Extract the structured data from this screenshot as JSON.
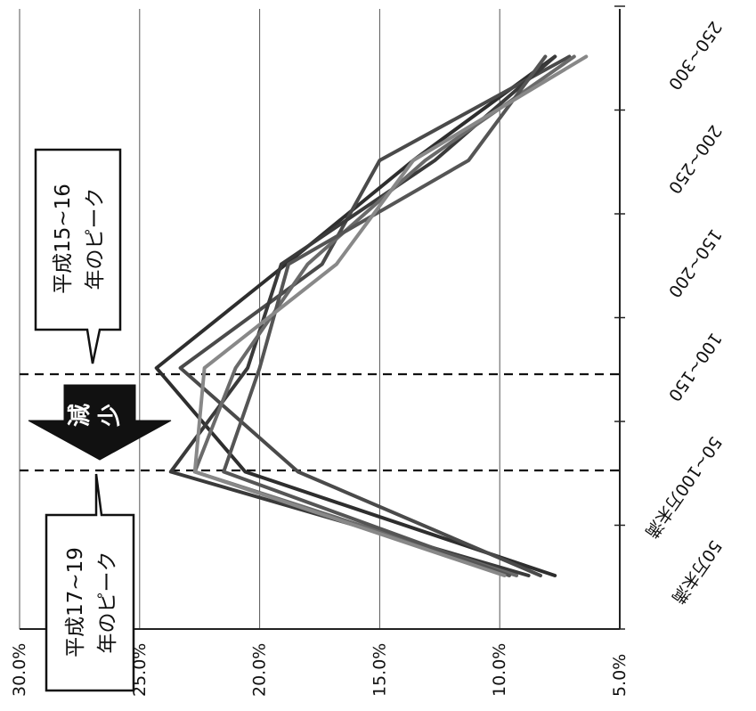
{
  "chart_data": {
    "type": "line",
    "orientation": "rotated-90-clockwise",
    "title": "",
    "xlabel": "",
    "ylabel": "",
    "categories": [
      "50万未満",
      "50~100万未満",
      "100~150",
      "150~200",
      "200~250",
      "250~300"
    ],
    "value_axis": {
      "ylim": [
        0.05,
        0.3
      ],
      "ticks": [
        "5.0%",
        "10.0%",
        "15.0%",
        "20.0%",
        "25.0%",
        "30.0%"
      ],
      "tick_values": [
        0.05,
        0.1,
        0.15,
        0.2,
        0.25,
        0.3
      ],
      "grid": true
    },
    "series": [
      {
        "values": [
          0.077,
          0.206,
          0.243,
          0.189,
          0.136,
          0.077
        ],
        "color": "#2e2e2e"
      },
      {
        "values": [
          0.083,
          0.184,
          0.233,
          0.174,
          0.15,
          0.071
        ],
        "color": "#4a4a4a"
      },
      {
        "values": [
          0.088,
          0.237,
          0.205,
          0.191,
          0.127,
          0.077
        ],
        "color": "#3a3a3a"
      },
      {
        "values": [
          0.093,
          0.227,
          0.21,
          0.18,
          0.131,
          0.069
        ],
        "color": "#6a6a6a"
      },
      {
        "values": [
          0.096,
          0.215,
          0.2,
          0.188,
          0.113,
          0.081
        ],
        "color": "#555555"
      },
      {
        "values": [
          0.098,
          0.227,
          0.223,
          0.168,
          0.136,
          0.064
        ],
        "color": "#888888"
      }
    ],
    "annotations": {
      "callout_top": "平成15~16\n年のピーク",
      "callout_bottom": "平成17~19\n年のピーク",
      "arrow_chars": [
        "減",
        "少"
      ]
    }
  }
}
